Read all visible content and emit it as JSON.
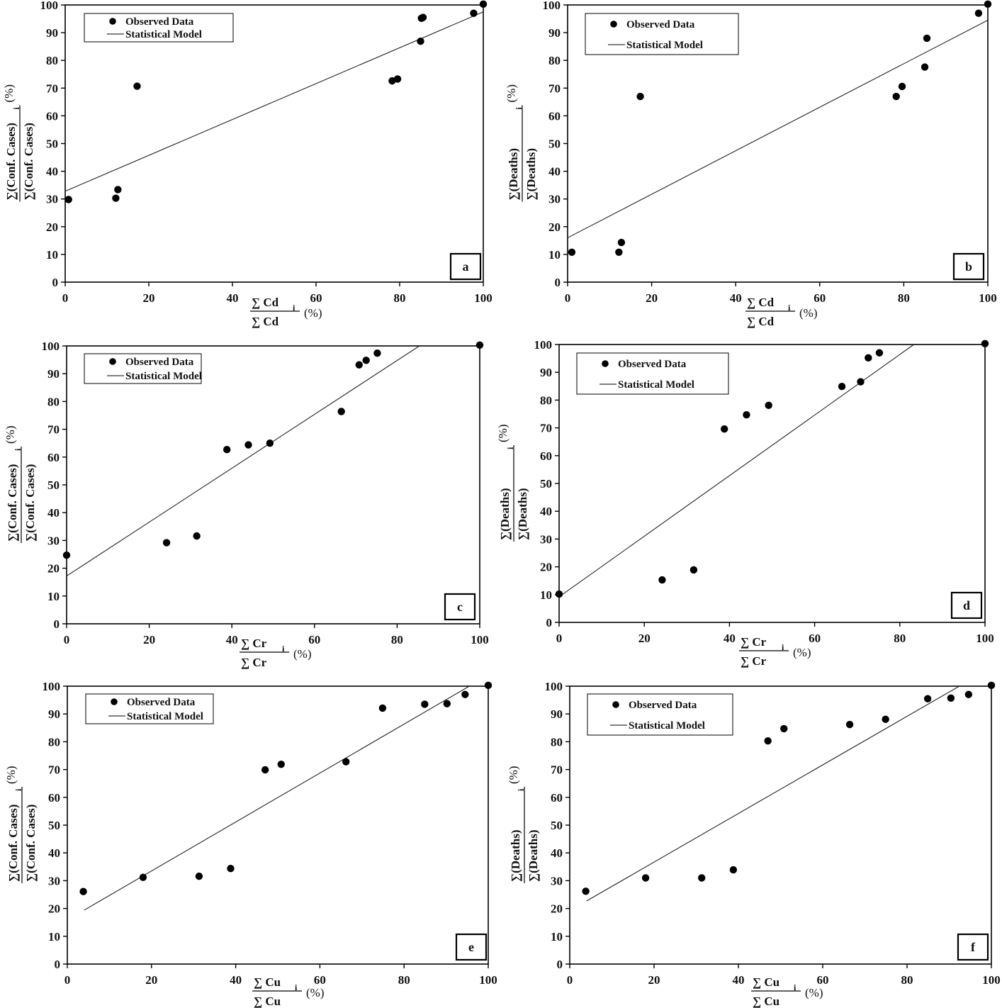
{
  "figure": {
    "legend": {
      "observed": "Observed Data",
      "model": "Statistical Model"
    },
    "percent_label": "(%)",
    "sigma": "∑"
  },
  "chart_data": [
    {
      "panel": "a",
      "type": "scatter",
      "x_num": "Cd",
      "x_sub": "i",
      "x_den": "Cd",
      "y_num": "(Conf. Cases)",
      "y_sub": "i",
      "y_den": "(Conf. Cases)",
      "xlim": [
        0,
        100
      ],
      "ylim": [
        0,
        100
      ],
      "xticks": [
        0,
        20,
        40,
        60,
        80,
        100
      ],
      "yticks": [
        0,
        10,
        20,
        30,
        40,
        50,
        60,
        70,
        80,
        90,
        100
      ],
      "points": [
        [
          0.8,
          29.8
        ],
        [
          12.1,
          30.3
        ],
        [
          12.6,
          33.4
        ],
        [
          17.2,
          70.7
        ],
        [
          78.2,
          72.6
        ],
        [
          79.5,
          73.3
        ],
        [
          85.0,
          86.9
        ],
        [
          85.2,
          95.2
        ],
        [
          85.6,
          95.5
        ],
        [
          97.7,
          97.0
        ],
        [
          100.0,
          100.3
        ]
      ],
      "model": [
        [
          0,
          32.8
        ],
        [
          100,
          97.5
        ]
      ],
      "legend_position": "top-left"
    },
    {
      "panel": "b",
      "type": "scatter",
      "x_num": "Cd",
      "x_sub": "i",
      "x_den": "Cd",
      "y_num": "(Deaths)",
      "y_sub": "i",
      "y_den": "(Deaths)",
      "xlim": [
        0,
        100
      ],
      "ylim": [
        0,
        100
      ],
      "xticks": [
        0,
        20,
        40,
        60,
        80,
        100
      ],
      "yticks": [
        0,
        10,
        20,
        30,
        40,
        50,
        60,
        70,
        80,
        90,
        100
      ],
      "points": [
        [
          1.0,
          10.8
        ],
        [
          12.2,
          10.8
        ],
        [
          12.8,
          14.3
        ],
        [
          17.3,
          67.0
        ],
        [
          78.2,
          67.0
        ],
        [
          79.6,
          70.6
        ],
        [
          85.0,
          77.6
        ],
        [
          85.5,
          88.0
        ],
        [
          97.8,
          97.0
        ],
        [
          100.0,
          100.3
        ]
      ],
      "model": [
        [
          0,
          16.0
        ],
        [
          100,
          94.5
        ]
      ],
      "legend_position": "top-left"
    },
    {
      "panel": "c",
      "type": "scatter",
      "x_num": "Cr",
      "x_sub": "i",
      "x_den": "Cr",
      "y_num": "(Conf. Cases)",
      "y_sub": "i",
      "y_den": "(Conf. Cases)",
      "xlim": [
        0,
        100
      ],
      "ylim": [
        0,
        100
      ],
      "xticks": [
        0,
        20,
        40,
        60,
        80,
        100
      ],
      "yticks": [
        0,
        10,
        20,
        30,
        40,
        50,
        60,
        70,
        80,
        90,
        100
      ],
      "points": [
        [
          0.0,
          24.7
        ],
        [
          24.2,
          29.2
        ],
        [
          31.5,
          31.6
        ],
        [
          38.8,
          62.7
        ],
        [
          44.0,
          64.4
        ],
        [
          49.2,
          65.0
        ],
        [
          66.5,
          76.4
        ],
        [
          70.8,
          93.2
        ],
        [
          72.5,
          94.8
        ],
        [
          75.2,
          97.4
        ],
        [
          100.0,
          100.3
        ]
      ],
      "model": [
        [
          0,
          17.2
        ],
        [
          85.4,
          100
        ]
      ],
      "legend_position": "top-left"
    },
    {
      "panel": "d",
      "type": "scatter",
      "x_num": "Cr",
      "x_sub": "i",
      "x_den": "Cr",
      "y_num": "(Deaths)",
      "y_sub": "i",
      "y_den": "(Deaths)",
      "xlim": [
        0,
        100
      ],
      "ylim": [
        0,
        100
      ],
      "xticks": [
        0,
        20,
        40,
        60,
        80,
        100
      ],
      "yticks": [
        0,
        10,
        20,
        30,
        40,
        50,
        60,
        70,
        80,
        90,
        100
      ],
      "points": [
        [
          0.0,
          10.2
        ],
        [
          24.2,
          15.3
        ],
        [
          31.6,
          18.9
        ],
        [
          38.8,
          69.6
        ],
        [
          44.0,
          74.7
        ],
        [
          49.2,
          78.1
        ],
        [
          66.4,
          84.9
        ],
        [
          70.8,
          86.6
        ],
        [
          72.6,
          95.2
        ],
        [
          75.2,
          97.0
        ],
        [
          100.0,
          100.3
        ]
      ],
      "model": [
        [
          0,
          9.2
        ],
        [
          83.3,
          100
        ]
      ],
      "legend_position": "top-left"
    },
    {
      "panel": "e",
      "type": "scatter",
      "x_num": "Cu",
      "x_sub": "i",
      "x_den": "Cu",
      "y_num": "(Conf. Cases)",
      "y_sub": "i",
      "y_den": "(Conf. Cases)",
      "xlim": [
        0,
        100
      ],
      "ylim": [
        0,
        100
      ],
      "xticks": [
        0,
        20,
        40,
        60,
        80,
        100
      ],
      "yticks": [
        0,
        10,
        20,
        30,
        40,
        50,
        60,
        70,
        80,
        90,
        100
      ],
      "points": [
        [
          3.8,
          26.1
        ],
        [
          18.0,
          31.2
        ],
        [
          31.3,
          31.6
        ],
        [
          38.8,
          34.4
        ],
        [
          47.0,
          69.9
        ],
        [
          50.8,
          71.9
        ],
        [
          66.2,
          72.8
        ],
        [
          74.9,
          92.1
        ],
        [
          84.9,
          93.5
        ],
        [
          90.2,
          93.7
        ],
        [
          94.5,
          97.0
        ],
        [
          100.0,
          100.3
        ]
      ],
      "model": [
        [
          4,
          19.4
        ],
        [
          95.5,
          100
        ]
      ],
      "legend_position": "top-left"
    },
    {
      "panel": "f",
      "type": "scatter",
      "x_num": "Cu",
      "x_sub": "i",
      "x_den": "Cu",
      "y_num": "(Deaths)",
      "y_sub": "i",
      "y_den": "(Deaths)",
      "xlim": [
        0,
        100
      ],
      "ylim": [
        0,
        100
      ],
      "xticks": [
        0,
        20,
        40,
        60,
        80,
        100
      ],
      "yticks": [
        0,
        10,
        20,
        30,
        40,
        50,
        60,
        70,
        80,
        90,
        100
      ],
      "points": [
        [
          3.8,
          26.2
        ],
        [
          18.0,
          31.0
        ],
        [
          31.3,
          31.0
        ],
        [
          38.8,
          33.9
        ],
        [
          47.0,
          80.3
        ],
        [
          50.8,
          84.7
        ],
        [
          66.4,
          86.2
        ],
        [
          74.9,
          88.1
        ],
        [
          84.9,
          95.5
        ],
        [
          90.4,
          95.7
        ],
        [
          94.6,
          97.0
        ],
        [
          100.0,
          100.3
        ]
      ],
      "model": [
        [
          4,
          22.7
        ],
        [
          92.4,
          100
        ]
      ],
      "legend_position": "top-left"
    }
  ]
}
